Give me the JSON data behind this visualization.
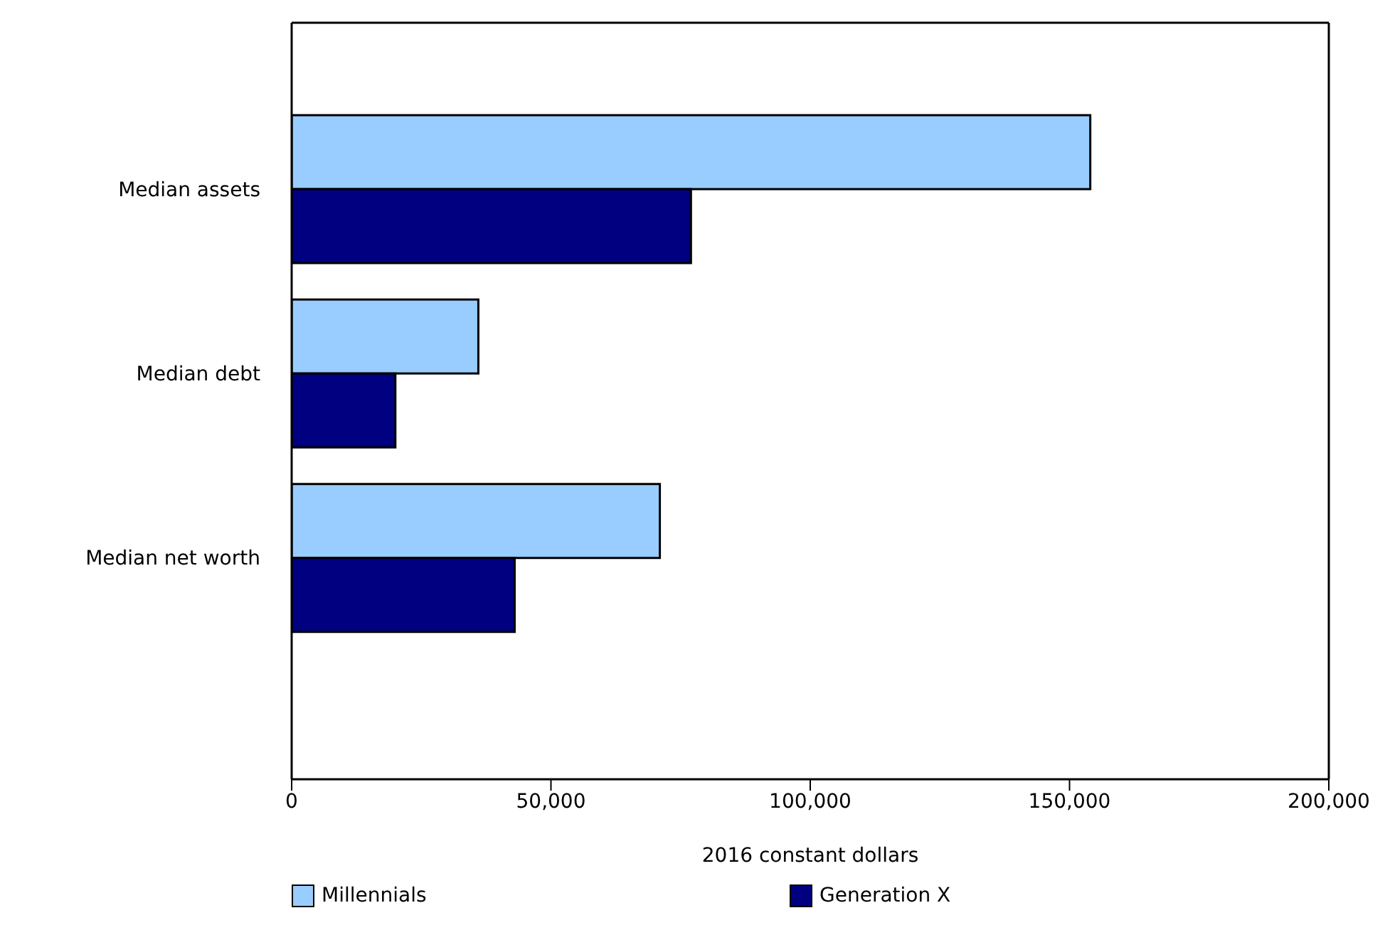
{
  "chart_data": {
    "type": "bar",
    "orientation": "horizontal",
    "categories": [
      "Median assets",
      "Median debt",
      "Median net worth"
    ],
    "series": [
      {
        "name": "Millennials",
        "color": "#99ccff",
        "values": [
          154000,
          36000,
          71000
        ]
      },
      {
        "name": "Generation X",
        "color": "#000080",
        "values": [
          77000,
          20000,
          43000
        ]
      }
    ],
    "xlabel": "2016 constant dollars",
    "xlim": [
      0,
      200000
    ],
    "xticks": [
      {
        "value": 0,
        "label": "0"
      },
      {
        "value": 50000,
        "label": "50,000"
      },
      {
        "value": 100000,
        "label": "100,000"
      },
      {
        "value": 150000,
        "label": "150,000"
      },
      {
        "value": 200000,
        "label": "200,000"
      }
    ],
    "legend": "bottom"
  }
}
